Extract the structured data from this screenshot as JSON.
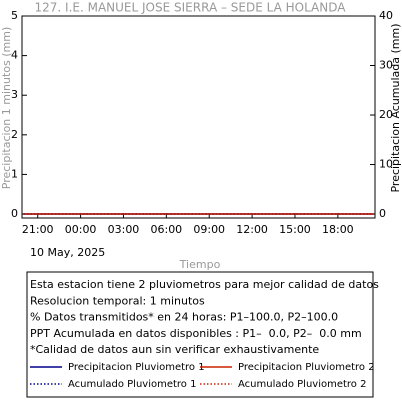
{
  "chart_data": {
    "type": "line",
    "title": "127. I.E. MANUEL JOSE SIERRA – SEDE LA HOLANDA",
    "x_label": "Tiempo",
    "y_label": "Precipitacion 1 minutos (mm)",
    "y2_label": "Precipitacion Acumulada (mm)",
    "date_label": "10 May, 2025",
    "x": [
      -1,
      23.5
    ],
    "xlim": [
      -1.1,
      23.6
    ],
    "xticks": [
      {
        "value": 0,
        "label": "21:00"
      },
      {
        "value": 3,
        "label": "00:00"
      },
      {
        "value": 6,
        "label": "03:00"
      },
      {
        "value": 9,
        "label": "06:00"
      },
      {
        "value": 12,
        "label": "09:00"
      },
      {
        "value": 15,
        "label": "12:00"
      },
      {
        "value": 18,
        "label": "15:00"
      },
      {
        "value": 21,
        "label": "18:00"
      }
    ],
    "ylim": [
      -0.1,
      5
    ],
    "yticks": [
      0,
      1,
      2,
      3,
      4,
      5
    ],
    "y2lim": [
      -0.8,
      40
    ],
    "y2ticks": [
      0,
      10,
      20,
      30,
      40
    ],
    "series": [
      {
        "name": "Precipitacion Pluviometro 1",
        "color": "#00008b",
        "style": "solid",
        "values": [
          0,
          0
        ]
      },
      {
        "name": "Precipitacion Pluviometro 2",
        "color": "#cc2200",
        "style": "solid",
        "values": [
          0,
          0
        ]
      },
      {
        "name": "Acumulado Pluviometro 1",
        "color": "#00008b",
        "style": "dotted",
        "axis": "y2",
        "values": [
          0,
          0
        ]
      },
      {
        "name": "Acumulado Pluviometro 2",
        "color": "#cc2200",
        "style": "dotted",
        "axis": "y2",
        "values": [
          0,
          0
        ]
      }
    ],
    "notes": [
      "Esta estacion tiene 2 pluviometros para mejor calidad de datos",
      "Resolucion temporal: 1 minutos",
      "% Datos transmitidos* en 24 horas: P1–100.0, P2–100.0",
      "PPT Acumulada en datos disponibles : P1–  0.0, P2–  0.0 mm",
      "*Calidad de datos aun sin verificar exhaustivamente"
    ]
  }
}
